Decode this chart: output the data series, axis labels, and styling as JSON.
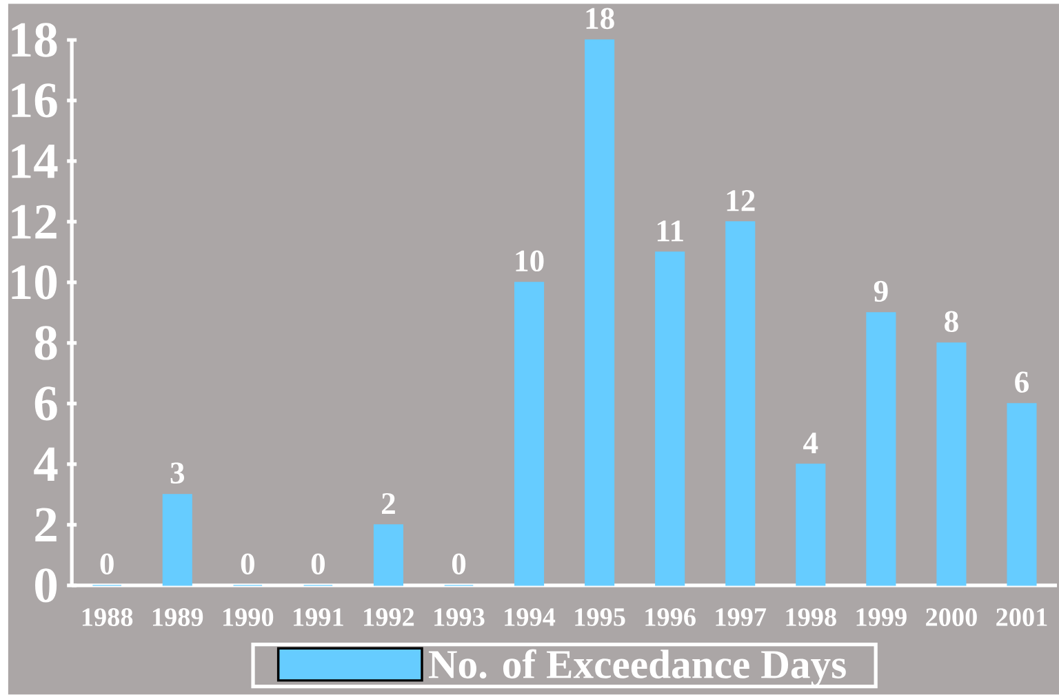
{
  "chart_data": {
    "type": "bar",
    "categories": [
      "1988",
      "1989",
      "1990",
      "1991",
      "1992",
      "1993",
      "1994",
      "1995",
      "1996",
      "1997",
      "1998",
      "1999",
      "2000",
      "2001"
    ],
    "series": [
      {
        "name": "No. of Exceedance Days",
        "color": "#66ccff",
        "values": [
          0,
          3,
          0,
          0,
          2,
          0,
          10,
          18,
          11,
          12,
          4,
          9,
          8,
          6
        ]
      }
    ],
    "ylim": [
      0,
      18
    ],
    "yticks": [
      0,
      2,
      4,
      6,
      8,
      10,
      12,
      14,
      16,
      18
    ],
    "data_labels": true,
    "legend": "bottom",
    "grid": false
  }
}
